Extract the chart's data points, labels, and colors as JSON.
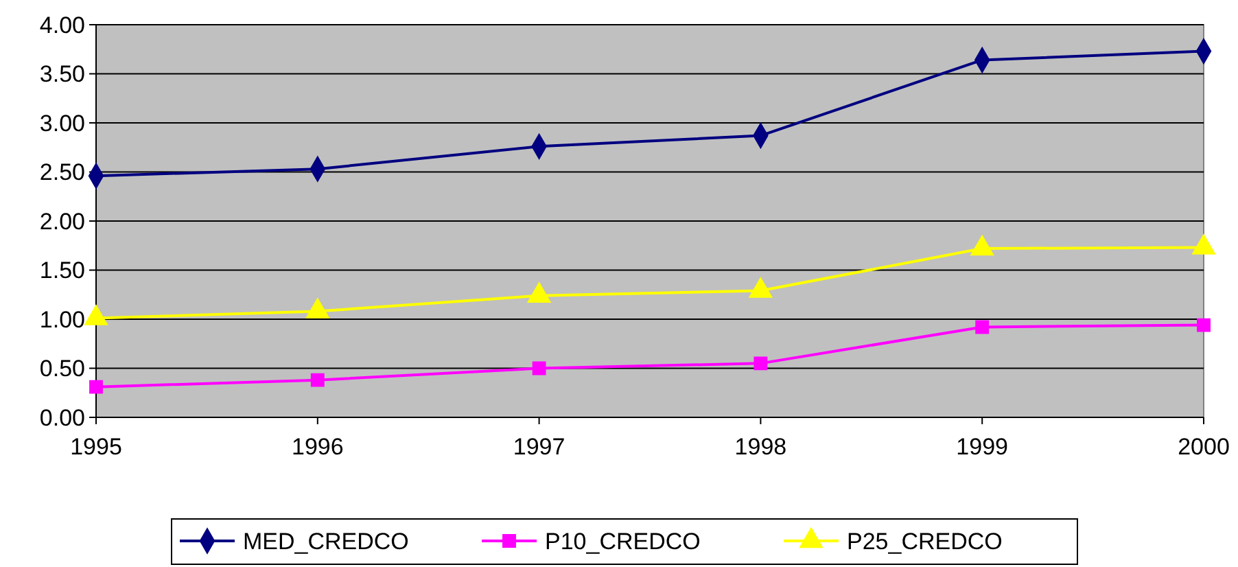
{
  "chart_data": {
    "type": "line",
    "x": [
      1995,
      1996,
      1997,
      1998,
      1999,
      2000
    ],
    "xlim": [
      1995,
      2000
    ],
    "xticks": [
      1995,
      1996,
      1997,
      1998,
      1999,
      2000
    ],
    "ylim": [
      0,
      4
    ],
    "yticks": [
      {
        "value": 0,
        "label": "0.00"
      },
      {
        "value": 0.5,
        "label": "0.50"
      },
      {
        "value": 1,
        "label": "1.00"
      },
      {
        "value": 1.5,
        "label": "1.50"
      },
      {
        "value": 2,
        "label": "2.00"
      },
      {
        "value": 2.5,
        "label": "2.50"
      },
      {
        "value": 3,
        "label": "3.00"
      },
      {
        "value": 3.5,
        "label": "3.50"
      },
      {
        "value": 4,
        "label": "4.00"
      }
    ],
    "grid": "y",
    "legend": "bottom",
    "line_style": "solid",
    "series": [
      {
        "name": "MED_CREDCO",
        "color": "#000080",
        "marker": "diamond",
        "values": [
          2.46,
          2.53,
          2.76,
          2.87,
          3.64,
          3.73
        ]
      },
      {
        "name": "P10_CREDCO",
        "color": "#ff00ff",
        "marker": "square",
        "values": [
          0.31,
          0.38,
          0.5,
          0.55,
          0.92,
          0.94
        ]
      },
      {
        "name": "P25_CREDCO",
        "color": "#ffff00",
        "marker": "triangle",
        "values": [
          1.01,
          1.08,
          1.24,
          1.29,
          1.72,
          1.73
        ]
      }
    ]
  }
}
